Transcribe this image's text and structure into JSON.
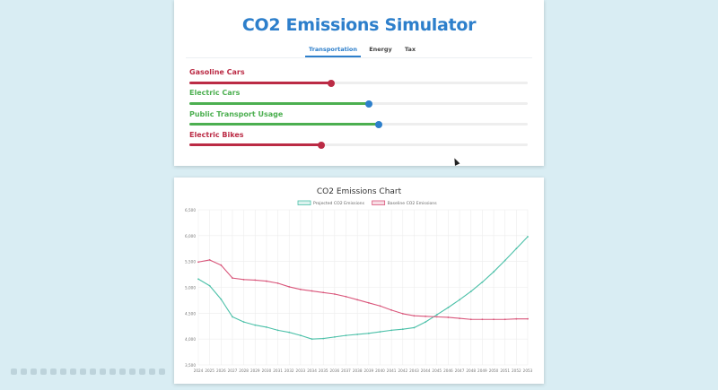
{
  "app": {
    "title": "CO2 Emissions Simulator"
  },
  "tabs": [
    {
      "label": "Transportation",
      "active": true
    },
    {
      "label": "Energy",
      "active": false
    },
    {
      "label": "Tax",
      "active": false
    }
  ],
  "sliders": [
    {
      "label": "Gasoline Cars",
      "value": 0.42,
      "color": "#bb2b45"
    },
    {
      "label": "Electric Cars",
      "value": 0.53,
      "color": "#4caf50",
      "thumb_color": "#2d7fcb"
    },
    {
      "label": "Public Transport Usage",
      "value": 0.56,
      "color": "#4caf50",
      "thumb_color": "#2d7fcb"
    },
    {
      "label": "Electric Bikes",
      "value": 0.39,
      "color": "#bb2b45"
    }
  ],
  "chart": {
    "title": "CO2 Emissions Chart"
  },
  "chart_data": {
    "type": "line",
    "title": "CO2 Emissions Chart",
    "x": [
      2024,
      2025,
      2026,
      2027,
      2028,
      2029,
      2030,
      2031,
      2032,
      2033,
      2034,
      2035,
      2036,
      2037,
      2038,
      2039,
      2040,
      2041,
      2042,
      2043,
      2044,
      2045,
      2046,
      2047,
      2048,
      2049,
      2050,
      2051,
      2052,
      2053
    ],
    "ylim": [
      3500,
      6500
    ],
    "yticks": [
      3500,
      4000,
      4500,
      5000,
      5500,
      6000,
      6500
    ],
    "ytick_labels": [
      "3,500",
      "4,000",
      "4,500",
      "5,000",
      "5,500",
      "6,000",
      "6,500"
    ],
    "grid": true,
    "legend_position": "top",
    "series": [
      {
        "name": "Projected CO2 Emissions",
        "color": "#4bc0a8",
        "values": [
          5160,
          5030,
          4770,
          4430,
          4330,
          4270,
          4230,
          4170,
          4130,
          4070,
          4000,
          4010,
          4040,
          4070,
          4090,
          4110,
          4140,
          4170,
          4190,
          4220,
          4330,
          4470,
          4610,
          4760,
          4920,
          5100,
          5300,
          5520,
          5750,
          5980
        ]
      },
      {
        "name": "Baseline CO2 Emissions",
        "color": "#d9557a",
        "values": [
          5490,
          5530,
          5430,
          5180,
          5150,
          5140,
          5120,
          5080,
          5010,
          4960,
          4930,
          4900,
          4870,
          4820,
          4760,
          4700,
          4640,
          4560,
          4490,
          4450,
          4440,
          4430,
          4420,
          4400,
          4380,
          4380,
          4380,
          4380,
          4390,
          4390
        ]
      }
    ]
  }
}
